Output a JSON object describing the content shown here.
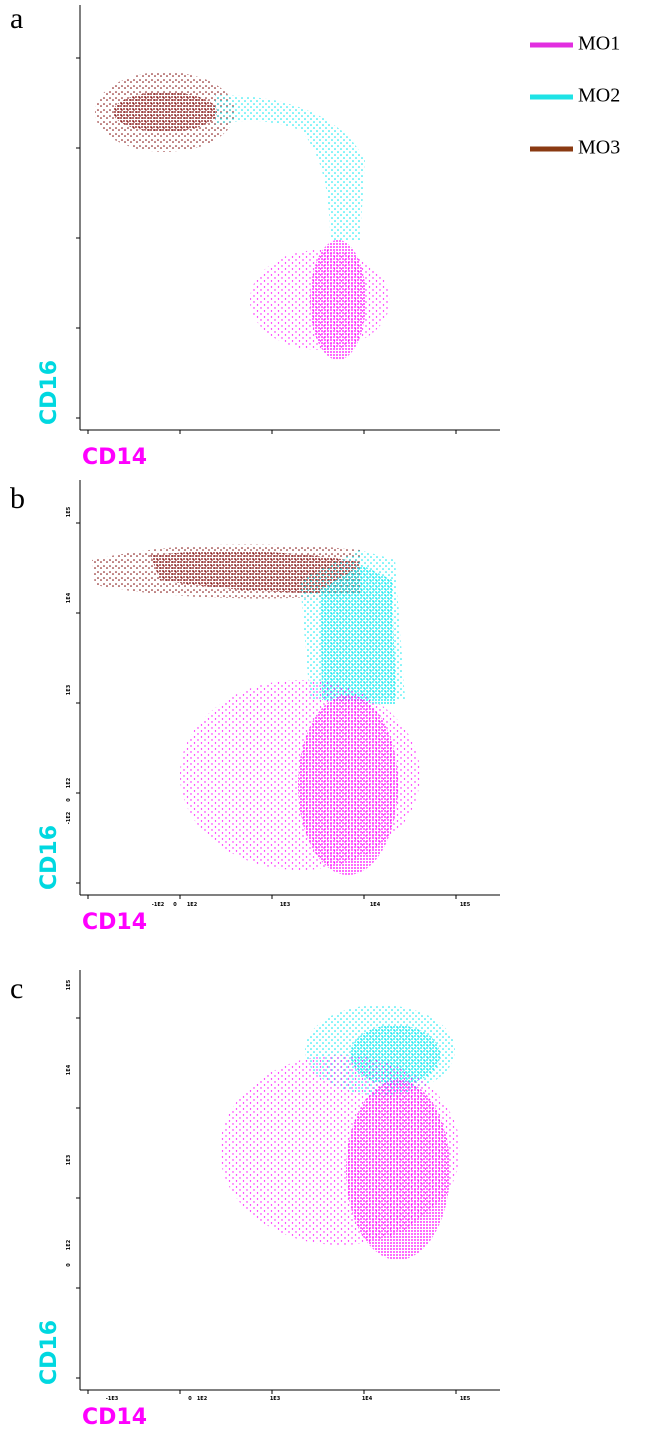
{
  "legend": [
    {
      "label": "MO1",
      "color": "#e22ee0"
    },
    {
      "label": "MO2",
      "color": "#1ee3e6"
    },
    {
      "label": "MO3",
      "color": "#8a3a12"
    }
  ],
  "panels": [
    {
      "letter": "a",
      "x_label": "CD14",
      "y_label": "CD16",
      "x_ticks": [],
      "y_ticks": []
    },
    {
      "letter": "b",
      "x_label": "CD14",
      "y_label": "CD16",
      "x_ticks": [
        "-1E2",
        "0",
        "1E2",
        "1E3",
        "1E4",
        "1E5"
      ],
      "y_ticks": [
        "1E5",
        "1E4",
        "1E3",
        "1E2",
        "0",
        "-1E2"
      ]
    },
    {
      "letter": "c",
      "x_label": "CD14",
      "y_label": "CD16",
      "x_ticks": [
        "-1E3",
        "0",
        "1E2",
        "1E3",
        "1E4",
        "1E5"
      ],
      "y_ticks": [
        "1E5",
        "1E4",
        "1E3",
        "1E2",
        "0"
      ]
    }
  ]
}
